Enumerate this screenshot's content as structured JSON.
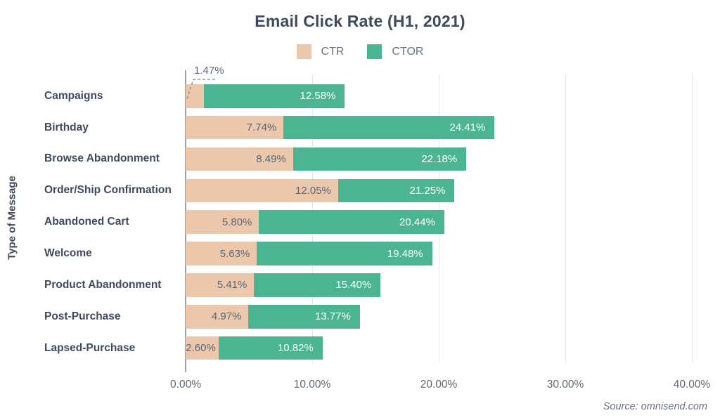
{
  "title": "Email Click Rate (H1, 2021)",
  "y_axis_title": "Type of Message",
  "source": "Source: omnisend.com",
  "legend": {
    "items": [
      {
        "label": "CTR",
        "color": "#EBC8AC"
      },
      {
        "label": "CTOR",
        "color": "#4BB592"
      }
    ]
  },
  "chart_data": {
    "type": "bar",
    "orientation": "horizontal",
    "title": "Email Click Rate (H1, 2021)",
    "xlabel": "",
    "ylabel": "Type of Message",
    "xlim": [
      0,
      40
    ],
    "x_ticks": [
      "0.00%",
      "10.00%",
      "20.00%",
      "30.00%",
      "40.00%"
    ],
    "x_tick_values": [
      0,
      10,
      20,
      30,
      40
    ],
    "grid": "vertical",
    "legend_position": "top",
    "bar_style": "CTR segment drawn from zero; CTOR bar continues so total bar length equals the CTOR value",
    "categories": [
      "Campaigns",
      "Birthday",
      "Browse Abandonment",
      "Order/Ship Confirmation",
      "Abandoned Cart",
      "Welcome",
      "Product Abandonment",
      "Post-Purchase",
      "Lapsed-Purchase"
    ],
    "series": [
      {
        "name": "CTR",
        "color": "#EBC8AC",
        "values": [
          1.47,
          7.74,
          8.49,
          12.05,
          5.8,
          5.63,
          5.41,
          4.97,
          2.6
        ],
        "labels": [
          "1.47%",
          "7.74%",
          "8.49%",
          "12.05%",
          "5.80%",
          "5.63%",
          "5.41%",
          "4.97%",
          "2.60%"
        ]
      },
      {
        "name": "CTOR",
        "color": "#4BB592",
        "values": [
          12.58,
          24.41,
          22.18,
          21.25,
          20.44,
          19.48,
          15.4,
          13.77,
          10.82
        ],
        "labels": [
          "12.58%",
          "24.41%",
          "22.18%",
          "21.25%",
          "20.44%",
          "19.48%",
          "15.40%",
          "13.77%",
          "10.82%"
        ]
      }
    ],
    "callout": {
      "category": "Campaigns",
      "series": "CTR",
      "text": "1.47%"
    }
  },
  "colors": {
    "ctr": "#EBC8AC",
    "ctor": "#4BB592",
    "title_text": "#3D4B5C",
    "category_label": "#3F4A5F",
    "ctr_value_label": "#5D6674",
    "ctor_value_label": "#FFFFFF",
    "tick_label": "#5F6878",
    "gridline": "#E4E7EA",
    "axis_line": "#9AA3AE",
    "source_text": "#6A7280",
    "background": "#FFFFFF"
  }
}
